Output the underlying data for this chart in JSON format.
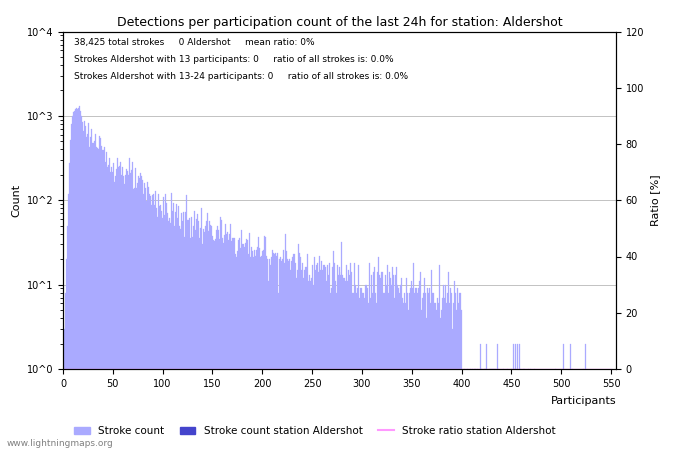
{
  "title": "Detections per participation count of the last 24h for station: Aldershot",
  "xlabel": "Participants",
  "ylabel_left": "Count",
  "ylabel_right": "Ratio [%]",
  "annotation_lines": [
    "38,425 total strokes     0 Aldershot     mean ratio: 0%",
    "Strokes Aldershot with 13 participants: 0     ratio of all strokes is: 0.0%",
    "Strokes Aldershot with 13-24 participants: 0     ratio of all strokes is: 0.0%"
  ],
  "xlim": [
    0,
    555
  ],
  "ylim_right": [
    0,
    120
  ],
  "bar_color": "#aaaaff",
  "station_bar_color": "#4444cc",
  "ratio_line_color": "#ff99ff",
  "background_color": "#ffffff",
  "grid_color": "#aaaaaa",
  "watermark": "www.lightningmaps.org",
  "legend_items": [
    {
      "label": "Stroke count",
      "color": "#aaaaff"
    },
    {
      "label": "Stroke count station Aldershot",
      "color": "#4444cc"
    },
    {
      "label": "Stroke ratio station Aldershot",
      "color": "#ff99ff"
    }
  ],
  "yticks_right": [
    0,
    20,
    40,
    60,
    80,
    100,
    120
  ],
  "xticks": [
    0,
    50,
    100,
    150,
    200,
    250,
    300,
    350,
    400,
    450,
    500,
    550
  ]
}
